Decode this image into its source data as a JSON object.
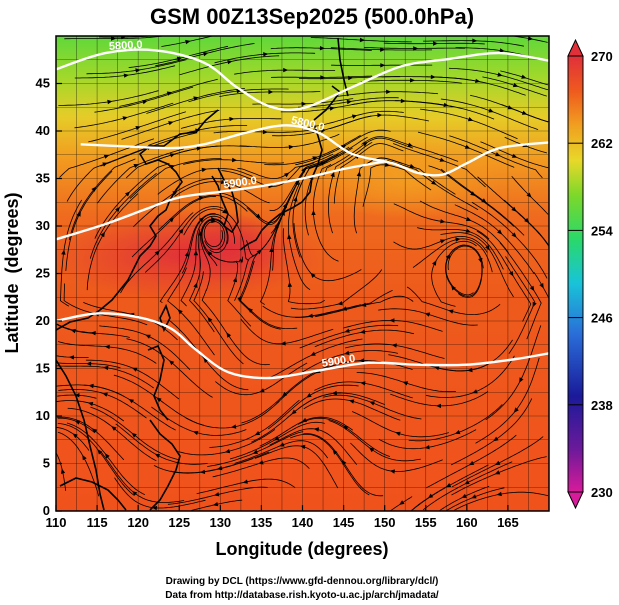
{
  "chart_data": {
    "type": "heatmap",
    "title": "GSM 00Z13Sep2025 (500.0hPa)",
    "xlabel": "Longitude (degrees)",
    "ylabel": "Latitude  (degrees)",
    "xlim": [
      110,
      170
    ],
    "ylim": [
      0,
      50
    ],
    "x_ticks": [
      110,
      115,
      120,
      125,
      130,
      135,
      140,
      145,
      150,
      155,
      160,
      165
    ],
    "y_ticks": [
      0,
      5,
      10,
      15,
      20,
      25,
      30,
      35,
      40,
      45
    ],
    "colorbar": {
      "range": [
        230,
        270
      ],
      "ticks": [
        230,
        238,
        246,
        254,
        262,
        270
      ],
      "colors": [
        "#d81b9a",
        "#1a1a9a",
        "#2a6cd8",
        "#19c4d8",
        "#2ad86a",
        "#7cd82a",
        "#e8d82a",
        "#f0a020",
        "#ef5a1e",
        "#e0303a"
      ]
    },
    "contours": [
      {
        "label": "5800.0",
        "points": [
          [
            110,
            46.5
          ],
          [
            116,
            48.2
          ],
          [
            122,
            48.5
          ],
          [
            128,
            47.2
          ],
          [
            132,
            44.6
          ],
          [
            136,
            42.6
          ],
          [
            140,
            42.4
          ],
          [
            146,
            44.6
          ],
          [
            152,
            46.8
          ],
          [
            158,
            47.6
          ],
          [
            164,
            48.2
          ],
          [
            170,
            47.4
          ]
        ]
      },
      {
        "label": "5800.0",
        "points": [
          [
            113,
            38.6
          ],
          [
            118,
            38.4
          ],
          [
            124,
            38.2
          ],
          [
            128,
            38.6
          ],
          [
            133,
            39.8
          ],
          [
            138,
            40.6
          ],
          [
            142,
            39.8
          ],
          [
            146,
            37.6
          ],
          [
            151,
            36.6
          ],
          [
            154,
            35.6
          ],
          [
            157,
            35.4
          ],
          [
            160,
            36.6
          ],
          [
            164,
            38.2
          ],
          [
            170,
            38.8
          ]
        ]
      },
      {
        "label": "5900.0",
        "points": [
          [
            110,
            28.6
          ],
          [
            116,
            30.2
          ],
          [
            121,
            31.8
          ],
          [
            125,
            33.0
          ],
          [
            130,
            33.6
          ],
          [
            135,
            34.2
          ],
          [
            140,
            35.0
          ],
          [
            145,
            36.0
          ],
          [
            150,
            36.8
          ]
        ]
      },
      {
        "label": "5900.0",
        "points": [
          [
            110,
            20.0
          ],
          [
            115,
            20.8
          ],
          [
            120,
            20.4
          ],
          [
            124,
            19.2
          ],
          [
            127,
            17.0
          ],
          [
            131,
            14.6
          ],
          [
            136,
            14.0
          ],
          [
            142,
            14.8
          ],
          [
            148,
            15.6
          ],
          [
            154,
            15.4
          ],
          [
            160,
            15.4
          ],
          [
            166,
            16.0
          ],
          [
            170,
            16.6
          ]
        ]
      }
    ],
    "anticyclones": [
      [
        129,
        30
      ],
      [
        149,
        39
      ],
      [
        160,
        27
      ]
    ]
  },
  "credits": {
    "line1": "Drawing by DCL (https://www.gfd-dennou.org/library/dcl/)",
    "line2": "Data from http://database.rish.kyoto-u.ac.jp/arch/jmadata/"
  }
}
